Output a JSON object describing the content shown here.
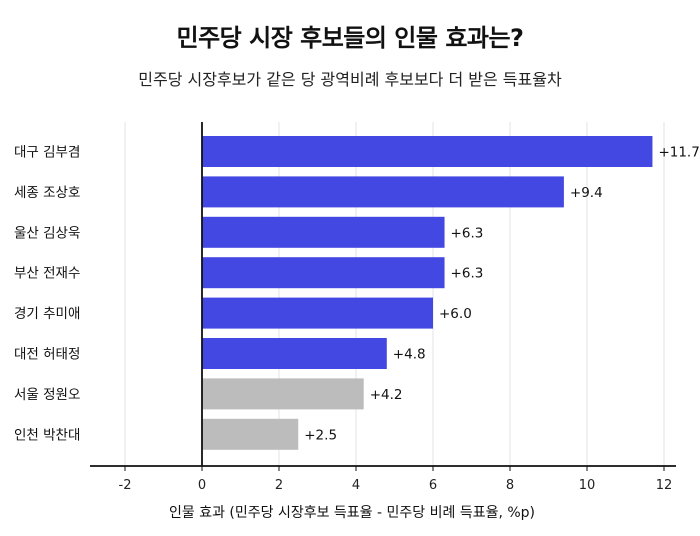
{
  "title": "민주당 시장 후보들의 인물 효과는?",
  "subtitle": "민주당 시장후보가 같은 당 광역비례 후보보다 더 받은 득표율차",
  "chart_data": {
    "type": "bar",
    "orientation": "horizontal",
    "categories": [
      "대구 김부겸",
      "세종 조상호",
      "울산 김상욱",
      "부산 전재수",
      "경기 추미애",
      "대전 허태정",
      "서울 정원오",
      "인천 박찬대"
    ],
    "values": [
      11.7,
      9.4,
      6.3,
      6.3,
      6.0,
      4.8,
      4.2,
      2.5
    ],
    "data_labels": [
      "+11.7",
      "+9.4",
      "+6.3",
      "+6.3",
      "+6.0",
      "+4.8",
      "+4.2",
      "+2.5"
    ],
    "colors": [
      "#4448e3",
      "#4448e3",
      "#4448e3",
      "#4448e3",
      "#4448e3",
      "#4448e3",
      "#bcbcbc",
      "#bcbcbc"
    ],
    "xlabel": "인물 효과 (민주당 시장후보 득표율 - 민주당 비례 득표율, %p)",
    "xlim": [
      -3,
      12.5
    ],
    "xticks": [
      "-2",
      "0",
      "2",
      "4",
      "6",
      "8",
      "10",
      "12"
    ],
    "xtick_values": [
      -2,
      0,
      2,
      4,
      6,
      8,
      10,
      12
    ],
    "grid": true
  }
}
